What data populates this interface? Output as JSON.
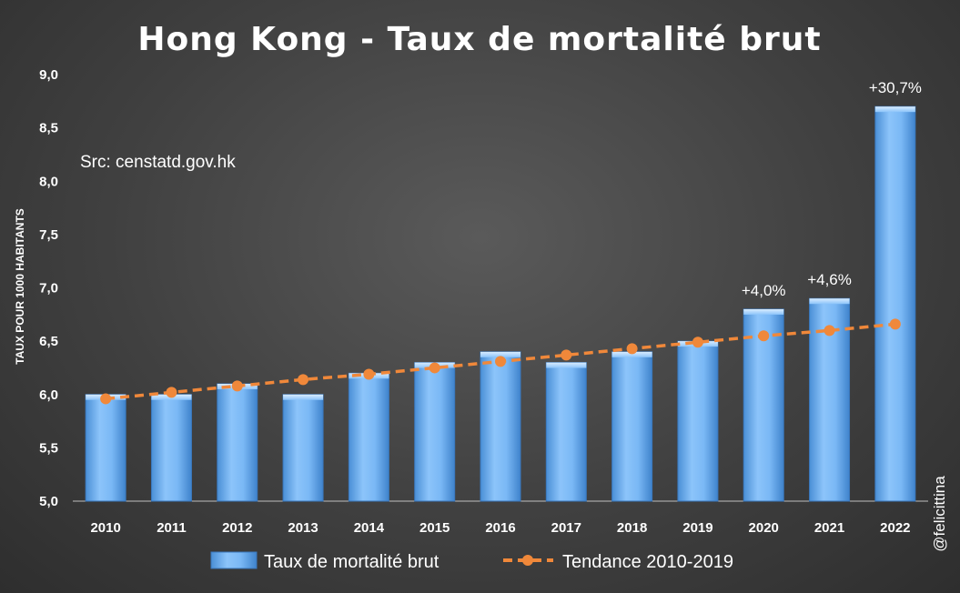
{
  "chart_data": {
    "type": "bar",
    "title": "Hong Kong - Taux de mortalité brut",
    "source_note": "Src: censtatd.gov.hk",
    "watermark": "@felicittina",
    "ylabel": "TAUX POUR 1000 HABITANTS",
    "ylim": [
      5.0,
      9.0
    ],
    "yticks": [
      "5,0",
      "5,5",
      "6,0",
      "6,5",
      "7,0",
      "7,5",
      "8,0",
      "8,5",
      "9,0"
    ],
    "categories": [
      "2010",
      "2011",
      "2012",
      "2013",
      "2014",
      "2015",
      "2016",
      "2017",
      "2018",
      "2019",
      "2020",
      "2021",
      "2022"
    ],
    "series": [
      {
        "name": "Taux de mortalité brut",
        "kind": "bar",
        "color": "#6aaef0",
        "values": [
          6.0,
          6.0,
          6.1,
          6.0,
          6.2,
          6.3,
          6.4,
          6.3,
          6.4,
          6.5,
          6.8,
          6.9,
          8.7
        ]
      },
      {
        "name": "Tendance 2010-2019",
        "kind": "line",
        "color": "#f0883a",
        "values": [
          5.96,
          6.02,
          6.08,
          6.14,
          6.19,
          6.25,
          6.31,
          6.37,
          6.43,
          6.49,
          6.55,
          6.6,
          6.66
        ]
      }
    ],
    "annotations": [
      {
        "category": "2020",
        "text": "+4,0%"
      },
      {
        "category": "2021",
        "text": "+4,6%"
      },
      {
        "category": "2022",
        "text": "+30,7%"
      }
    ],
    "legend_position": "bottom",
    "grid": false
  }
}
